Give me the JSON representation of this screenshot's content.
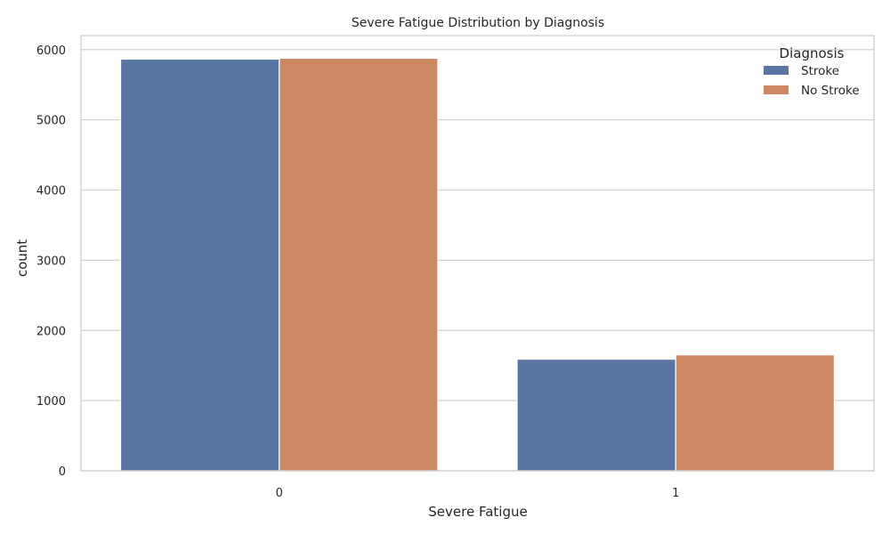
{
  "chart_data": {
    "type": "bar",
    "title": "Severe Fatigue Distribution by Diagnosis",
    "xlabel": "Severe Fatigue",
    "ylabel": "count",
    "categories": [
      "0",
      "1"
    ],
    "series": [
      {
        "name": "Stroke",
        "color": "#5975a4",
        "values": [
          5865,
          1590
        ]
      },
      {
        "name": "No Stroke",
        "color": "#cc8963",
        "values": [
          5878,
          1652
        ]
      }
    ],
    "ylim": [
      0,
      6200
    ],
    "yticks": [
      0,
      1000,
      2000,
      3000,
      4000,
      5000,
      6000
    ],
    "grid": "horizontal",
    "legend": {
      "title": "Diagnosis",
      "position": "top-right"
    }
  }
}
